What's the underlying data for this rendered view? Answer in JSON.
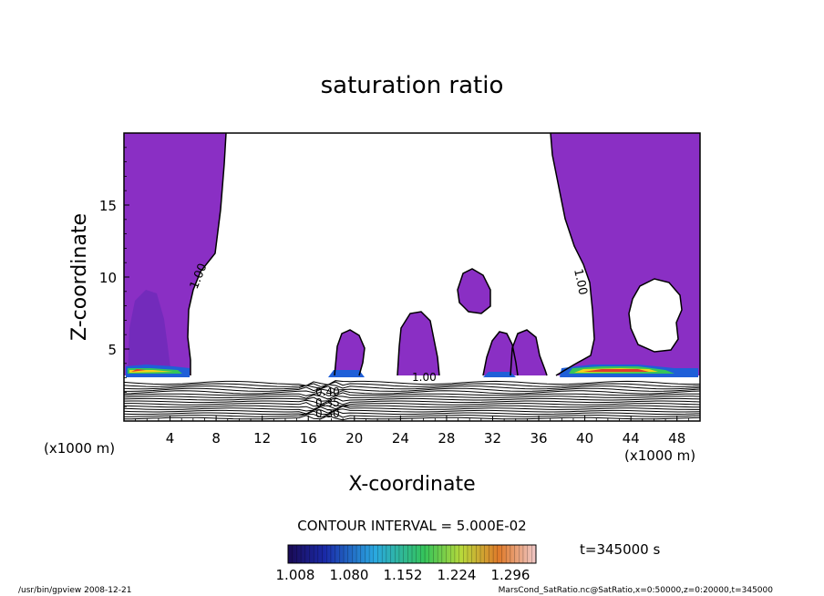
{
  "chart_data": {
    "type": "contour",
    "title": "saturation ratio",
    "xlabel": "X-coordinate",
    "ylabel": "Z-coordinate",
    "x_unit": "(x1000 m)",
    "y_unit": "(x1000 m)",
    "xlim": [
      0,
      50
    ],
    "ylim": [
      0,
      20
    ],
    "x_ticks": [
      4,
      8,
      12,
      16,
      20,
      24,
      28,
      32,
      36,
      40,
      44,
      48
    ],
    "y_ticks": [
      5,
      10,
      15
    ],
    "contour_interval_text": "CONTOUR INTERVAL = 5.000E-02",
    "time_text": "t=345000 s",
    "colorbar": {
      "labels": [
        "1.008",
        "1.080",
        "1.152",
        "1.224",
        "1.296"
      ],
      "min": 1.008,
      "max": 1.296
    },
    "contour_labels": [
      "1.00",
      "1.00",
      "1.00",
      "0.30",
      "0.35",
      "0.40"
    ],
    "footer_left": "/usr/bin/gpview   2008-12-21",
    "footer_right": "MarsCond_SatRatio.nc@SatRatio,x=0:50000,z=0:20000,t=345000",
    "colors": {
      "purple": "#8a2fc4",
      "blue": "#1f5fd8",
      "green": "#34c45a",
      "yellow": "#f2d21b",
      "red": "#e03a2a"
    }
  }
}
